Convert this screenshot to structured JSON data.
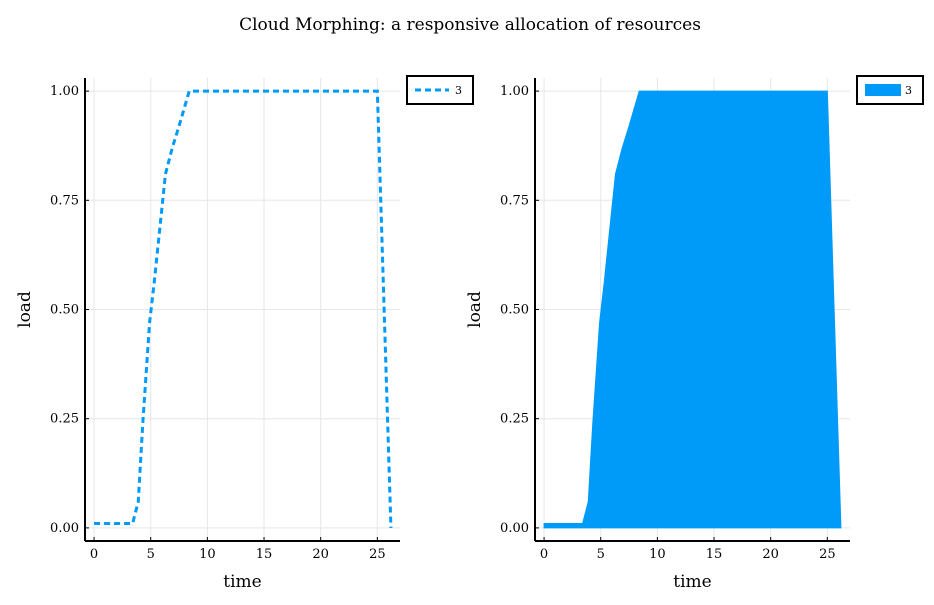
{
  "title": "Cloud Morphing: a responsive allocation of resources",
  "colors": {
    "series": "#009af9",
    "grid": "#e6e6e6",
    "axis": "#000000"
  },
  "chart_data": [
    {
      "type": "line",
      "xlabel": "time",
      "ylabel": "load",
      "xlim": [
        -0.8,
        27
      ],
      "ylim": [
        -0.03,
        1.03
      ],
      "xticks": [
        0,
        5,
        10,
        15,
        20,
        25
      ],
      "yticks": [
        "0.00",
        "0.25",
        "0.50",
        "0.75",
        "1.00"
      ],
      "grid": true,
      "legend": "top-right",
      "series": [
        {
          "name": "3",
          "style": "dashed",
          "x": [
            0,
            1,
            2,
            3,
            3.4,
            3.9,
            4.3,
            4.9,
            5.3,
            5.7,
            6.3,
            6.9,
            7.5,
            8.4,
            10,
            15,
            20,
            25,
            26.2
          ],
          "y": [
            0.01,
            0.01,
            0.01,
            0.01,
            0.01,
            0.06,
            0.24,
            0.47,
            0.56,
            0.66,
            0.81,
            0.87,
            0.92,
            1.0,
            1.0,
            1.0,
            1.0,
            1.0,
            0.0
          ]
        }
      ]
    },
    {
      "type": "area",
      "xlabel": "time",
      "ylabel": "load",
      "xlim": [
        -0.8,
        27
      ],
      "ylim": [
        -0.03,
        1.03
      ],
      "xticks": [
        0,
        5,
        10,
        15,
        20,
        25
      ],
      "yticks": [
        "0.00",
        "0.25",
        "0.50",
        "0.75",
        "1.00"
      ],
      "grid": true,
      "legend": "top-right",
      "series": [
        {
          "name": "3",
          "style": "filled",
          "x": [
            0,
            1,
            2,
            3,
            3.4,
            3.9,
            4.3,
            4.9,
            5.3,
            5.7,
            6.3,
            6.9,
            7.5,
            8.4,
            10,
            15,
            20,
            25,
            26.2
          ],
          "y": [
            0.01,
            0.01,
            0.01,
            0.01,
            0.01,
            0.06,
            0.24,
            0.47,
            0.56,
            0.66,
            0.81,
            0.87,
            0.92,
            1.0,
            1.0,
            1.0,
            1.0,
            1.0,
            0.0
          ]
        }
      ]
    }
  ]
}
